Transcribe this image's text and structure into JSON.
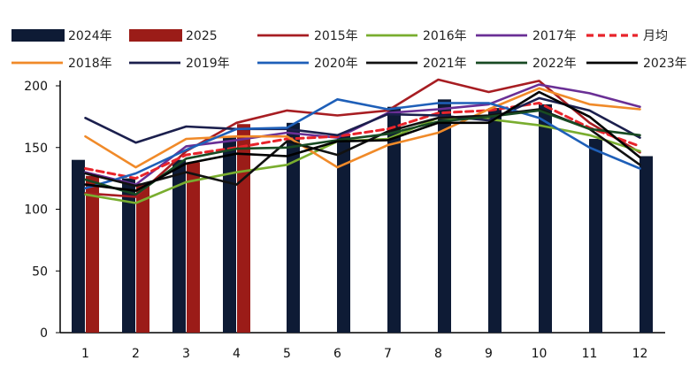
{
  "chart_data": {
    "type": "bar",
    "categories": [
      "1",
      "2",
      "3",
      "4",
      "5",
      "6",
      "7",
      "8",
      "9",
      "10",
      "11",
      "12"
    ],
    "ylim": [
      0,
      200
    ],
    "yticks": [
      0,
      50,
      100,
      150,
      200
    ],
    "grid": false,
    "legend_position": "top",
    "bar_series": [
      {
        "name": "2024年",
        "color": "#0e1b35",
        "values": [
          140,
          125,
          140,
          158,
          170,
          160,
          183,
          189,
          182,
          185,
          157,
          143
        ]
      },
      {
        "name": "2025",
        "color": "#9b1c18",
        "values": [
          127,
          121,
          138,
          169,
          null,
          null,
          null,
          null,
          null,
          null,
          null,
          null
        ]
      }
    ],
    "line_series": [
      {
        "name": "2015年",
        "color": "#a71d22",
        "dash": false,
        "values": [
          113,
          110,
          147,
          170,
          180,
          176,
          180,
          205,
          195,
          204,
          170,
          146
        ]
      },
      {
        "name": "2016年",
        "color": "#79ad2f",
        "dash": false,
        "values": [
          112,
          105,
          122,
          130,
          136,
          155,
          157,
          174,
          173,
          168,
          160,
          147
        ]
      },
      {
        "name": "2017年",
        "color": "#6a2f95",
        "dash": false,
        "values": [
          130,
          120,
          151,
          156,
          162,
          158,
          178,
          181,
          185,
          201,
          194,
          183
        ]
      },
      {
        "name": "月均",
        "color": "#e8242b",
        "dash": true,
        "values": [
          133,
          125,
          144,
          150,
          157,
          159,
          165,
          178,
          180,
          186,
          166,
          151
        ]
      },
      {
        "name": "2018年",
        "color": "#f08a29",
        "dash": false,
        "values": [
          159,
          134,
          157,
          159,
          159,
          134,
          152,
          162,
          181,
          198,
          185,
          181
        ]
      },
      {
        "name": "2019年",
        "color": "#1b1f4d",
        "dash": false,
        "values": [
          174,
          154,
          167,
          165,
          165,
          160,
          177,
          176,
          172,
          190,
          180,
          158
        ]
      },
      {
        "name": "2020年",
        "color": "#1e5fb8",
        "dash": false,
        "values": [
          117,
          129,
          148,
          165,
          166,
          189,
          181,
          186,
          186,
          174,
          150,
          133
        ]
      },
      {
        "name": "2021年",
        "color": "#111111",
        "dash": false,
        "values": [
          129,
          119,
          130,
          120,
          155,
          144,
          163,
          174,
          176,
          181,
          165,
          136
        ]
      },
      {
        "name": "2022年",
        "color": "#184a23",
        "dash": false,
        "values": [
          124,
          112,
          141,
          149,
          150,
          156,
          161,
          171,
          175,
          180,
          165,
          160
        ]
      },
      {
        "name": "2023年",
        "color": "#000000",
        "dash": false,
        "values": [
          120,
          115,
          137,
          145,
          143,
          155,
          156,
          170,
          170,
          195,
          175,
          142
        ]
      }
    ]
  }
}
